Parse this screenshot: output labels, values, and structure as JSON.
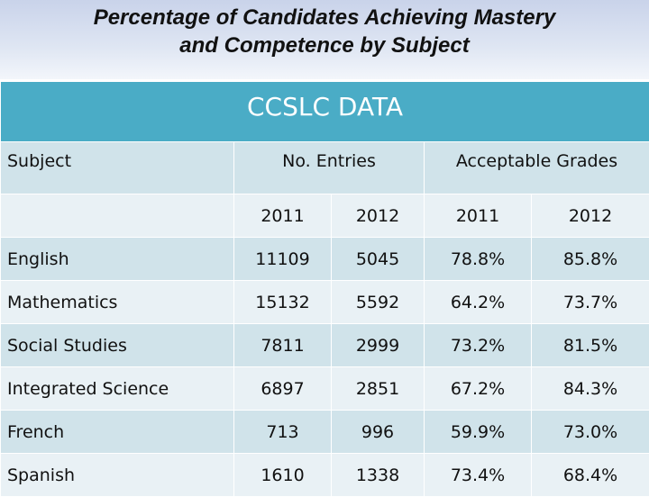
{
  "slide": {
    "title_line1": "Percentage of Candidates Achieving Mastery",
    "title_line2": "and Competence by Subject"
  },
  "table": {
    "banner": "CCSLC DATA",
    "subject_header": "Subject",
    "entries_header": "No. Entries",
    "grades_header": "Acceptable Grades",
    "years": [
      "2011",
      "2012",
      "2011",
      "2012"
    ],
    "rows": [
      {
        "subject": "English",
        "entries_2011": "11109",
        "entries_2012": "5045",
        "grades_2011": "78.8%",
        "grades_2012": "85.8%"
      },
      {
        "subject": "Mathematics",
        "entries_2011": "15132",
        "entries_2012": "5592",
        "grades_2011": "64.2%",
        "grades_2012": "73.7%"
      },
      {
        "subject": "Social Studies",
        "entries_2011": "7811",
        "entries_2012": "2999",
        "grades_2011": "73.2%",
        "grades_2012": "81.5%"
      },
      {
        "subject": "Integrated Science",
        "entries_2011": "6897",
        "entries_2012": "2851",
        "grades_2011": "67.2%",
        "grades_2012": "84.3%"
      },
      {
        "subject": "French",
        "entries_2011": "713",
        "entries_2012": "996",
        "grades_2011": "59.9%",
        "grades_2012": "73.0%"
      },
      {
        "subject": "Spanish",
        "entries_2011": "1610",
        "entries_2012": "1338",
        "grades_2011": "73.4%",
        "grades_2012": "68.4%"
      }
    ]
  },
  "colors": {
    "banner": "#4aacc6",
    "row_dark": "#d0e3ea",
    "row_light": "#e9f1f5"
  }
}
